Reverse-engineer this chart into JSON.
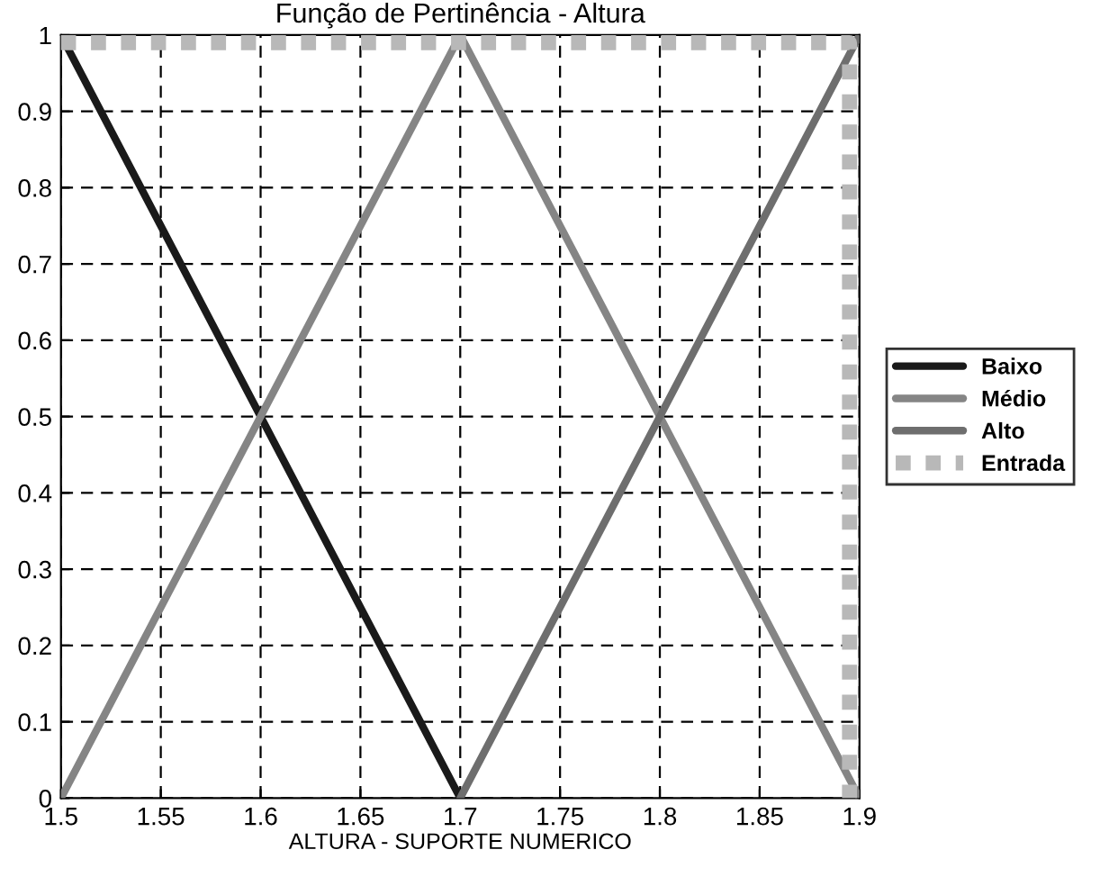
{
  "chart_data": {
    "type": "line",
    "title": "Função de Pertinência - Altura",
    "xlabel": "ALTURA - SUPORTE NUMERICO",
    "xlim": [
      1.5,
      1.9
    ],
    "xticks": [
      1.5,
      1.55,
      1.6,
      1.65,
      1.7,
      1.75,
      1.8,
      1.85,
      1.9
    ],
    "ylim": [
      0,
      1
    ],
    "yticks": [
      0,
      0.1,
      0.2,
      0.3,
      0.4,
      0.5,
      0.6,
      0.7,
      0.8,
      0.9,
      1
    ],
    "grid": true,
    "legend": "right",
    "marker": "none",
    "series": [
      {
        "name": "Baixo",
        "color": "#1a1a1a",
        "x": [
          1.5,
          1.7
        ],
        "values": [
          1,
          0
        ],
        "line_style": "solid"
      },
      {
        "name": "Médio",
        "color": "#858585",
        "x": [
          1.5,
          1.7,
          1.9
        ],
        "values": [
          0,
          1,
          0
        ],
        "line_style": "solid"
      },
      {
        "name": "Alto",
        "color": "#6e6e6e",
        "x": [
          1.7,
          1.9
        ],
        "values": [
          0,
          1
        ],
        "line_style": "solid"
      },
      {
        "name": "Entrada",
        "color": "#b8b8b8",
        "x": [
          1.5,
          1.895,
          1.895
        ],
        "values": [
          0.99,
          0.99,
          0
        ],
        "line_style": "dotted"
      }
    ]
  }
}
